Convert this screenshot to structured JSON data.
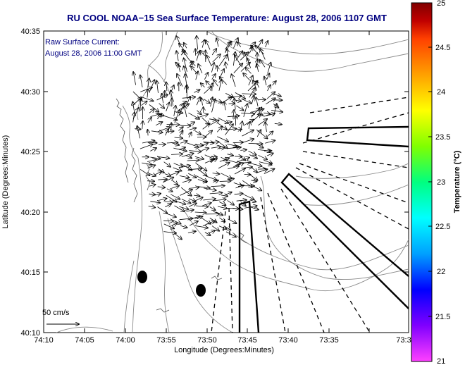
{
  "title": "RU COOL  NOAA−15  Sea Surface Temperature:  August 28, 2006 1107 GMT",
  "title_color": "#000080",
  "annotation": {
    "line1": "Raw Surface Current:",
    "line2": "August 28, 2006 11:00 GMT",
    "color": "#000080"
  },
  "scale_label": "50 cm/s",
  "x_axis": {
    "label": "Longitude (Degrees:Minutes)",
    "ticks": [
      "74:10",
      "74:05",
      "74:00",
      "73:55",
      "73:50",
      "73:45",
      "73:40",
      "73:35",
      "73:3"
    ]
  },
  "y_axis": {
    "label": "Latitude (Degrees:Minutes)",
    "ticks": [
      "40:35",
      "40:30",
      "40:25",
      "40:20",
      "40:15",
      "40:10"
    ]
  },
  "colorbar": {
    "label": "Temperature (°C)",
    "ticks": [
      "25",
      "24.5",
      "24",
      "23.5",
      "23",
      "22.5",
      "22",
      "21.5",
      "21"
    ],
    "min": 21,
    "max": 25,
    "colors": [
      "#ff40ff",
      "#8000ff",
      "#0000ff",
      "#00a0ff",
      "#00ffff",
      "#00ff80",
      "#80ff00",
      "#ffff00",
      "#ffa000",
      "#ff4000",
      "#c00000",
      "#800000"
    ]
  }
}
